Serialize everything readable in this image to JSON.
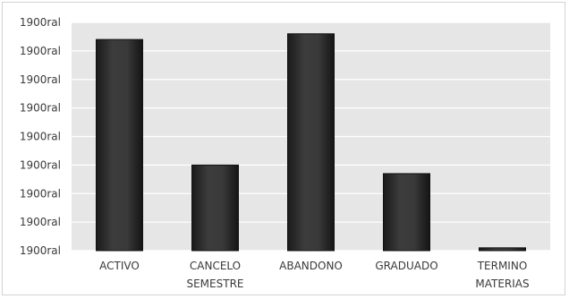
{
  "chart_data": {
    "type": "bar",
    "categories": [
      [
        "ACTIVO"
      ],
      [
        "CANCELO",
        "SEMESTRE"
      ],
      [
        "ABANDONO"
      ],
      [
        "GRADUADO"
      ],
      [
        "TERMINO",
        "MATERIAS"
      ]
    ],
    "values": [
      7.4,
      3.0,
      7.6,
      2.7,
      0.1
    ],
    "ylim": [
      0,
      8
    ],
    "y_ticks": [
      0,
      1,
      2,
      3,
      4,
      5,
      6,
      7,
      8
    ],
    "y_tick_labels": [
      "1900ral",
      "1900ral",
      "1900ral",
      "1900ral",
      "1900ral",
      "1900ral",
      "1900ral",
      "1900ral",
      "1900ral"
    ],
    "title": "",
    "xlabel": "",
    "ylabel": "",
    "grid": true,
    "legend": "none",
    "colors": {
      "plot_background": "#e6e6e6",
      "grid": "#ffffff",
      "bar_fill": "#2d2d2d",
      "bar_edge": "#111111"
    }
  }
}
